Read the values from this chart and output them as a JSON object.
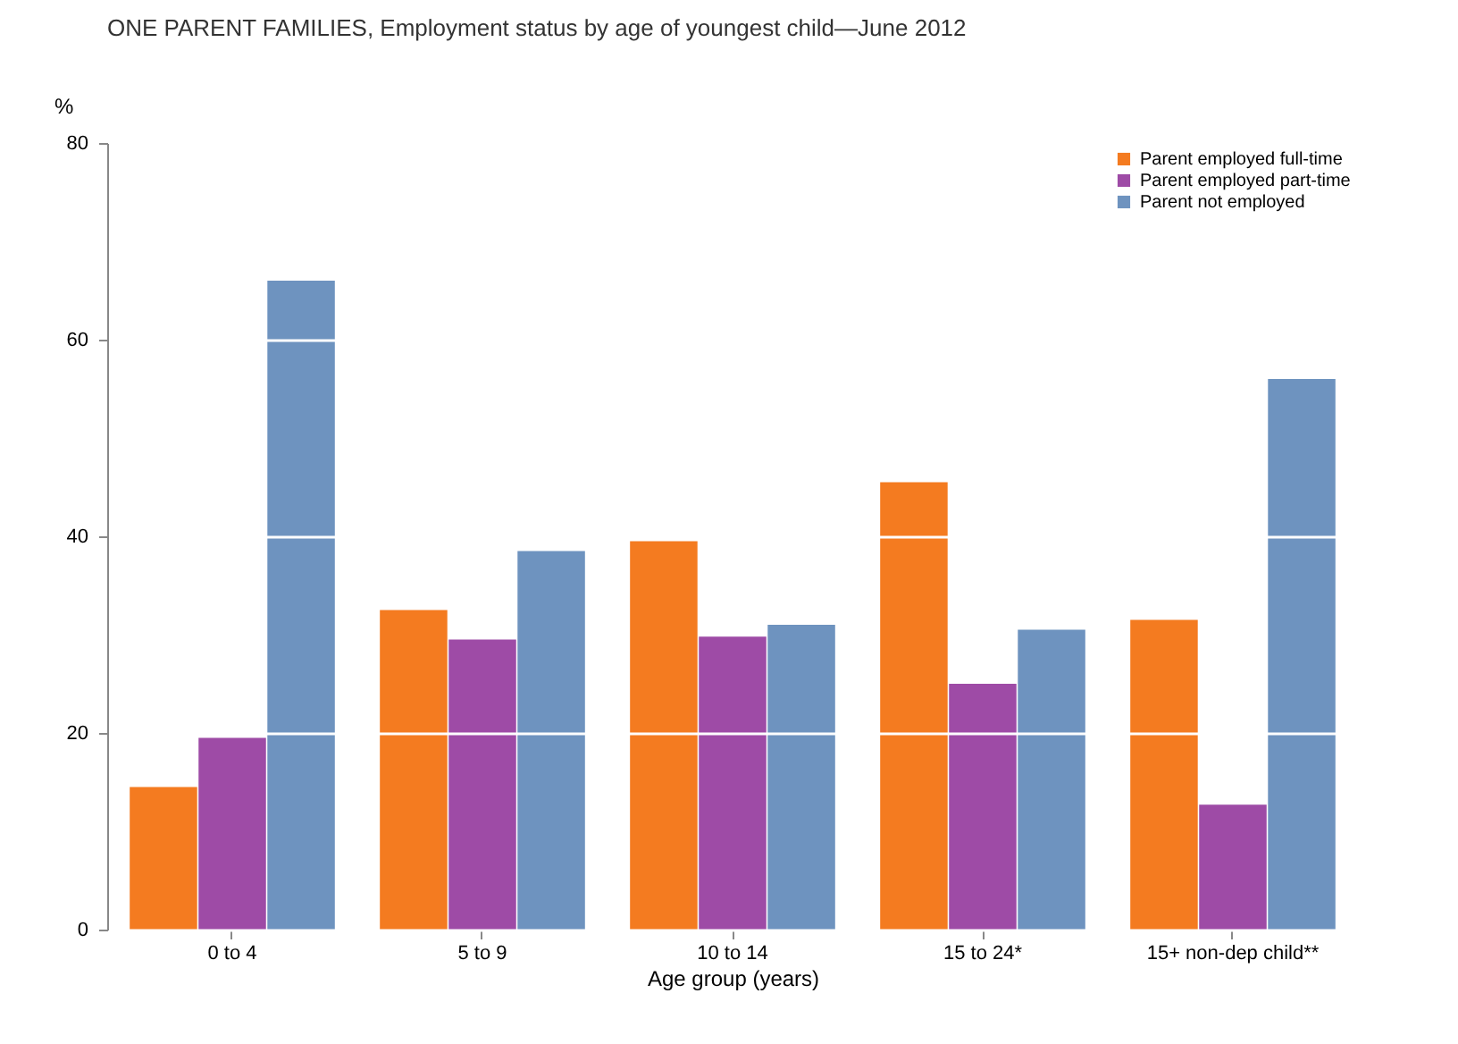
{
  "chart_data": {
    "type": "bar",
    "title": "ONE PARENT FAMILIES, Employment status by age of youngest child—June 2012",
    "xlabel": "Age group (years)",
    "ylabel": "%",
    "categories": [
      "0 to 4",
      "5 to 9",
      "10 to 14",
      "15 to 24*",
      "15+ non-dep child**"
    ],
    "series": [
      {
        "name": "Parent employed full-time",
        "color": "#f47b20",
        "values": [
          14.5,
          32.5,
          39.5,
          45.5,
          31.5
        ]
      },
      {
        "name": "Parent employed part-time",
        "color": "#9e4ba6",
        "values": [
          19.5,
          29.5,
          29.8,
          25,
          12.7
        ]
      },
      {
        "name": "Parent not employed",
        "color": "#6e93bf",
        "values": [
          66,
          38.5,
          31,
          30.5,
          56
        ]
      }
    ],
    "ylim": [
      0,
      80
    ],
    "yticks": [
      0,
      20,
      40,
      60,
      80
    ],
    "grid": "y",
    "legend": "top right"
  }
}
